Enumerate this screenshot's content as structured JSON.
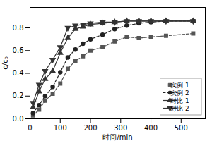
{
  "chart_data": {
    "type": "line",
    "xlabel": "时间/min",
    "ylabel": "c/c₀",
    "x": [
      10,
      30,
      50,
      75,
      100,
      125,
      150,
      175,
      200,
      240,
      280,
      320,
      360,
      400,
      450,
      540
    ],
    "series": [
      {
        "name": "实例 1",
        "color": "#555555",
        "marker": "square",
        "line_style": "dashed",
        "values": [
          0.03,
          0.08,
          0.16,
          0.22,
          0.31,
          0.44,
          0.51,
          0.55,
          0.6,
          0.63,
          0.68,
          0.72,
          0.71,
          0.72,
          0.73,
          0.75
        ]
      },
      {
        "name": "实例 2",
        "color": "#222222",
        "marker": "circle",
        "line_style": "dashed",
        "values": [
          0.05,
          0.12,
          0.2,
          0.28,
          0.41,
          0.54,
          0.61,
          0.66,
          0.7,
          0.74,
          0.79,
          0.82,
          0.84,
          0.85,
          0.86,
          0.86
        ]
      },
      {
        "name": "对比 1",
        "color": "#333333",
        "marker": "triangle-up",
        "line_style": "solid",
        "values": [
          0.1,
          0.24,
          0.35,
          0.42,
          0.58,
          0.71,
          0.79,
          0.81,
          0.83,
          0.84,
          0.85,
          0.86,
          0.86,
          0.86,
          0.86,
          0.86
        ]
      },
      {
        "name": "对比 2",
        "color": "#333333",
        "marker": "triangle-down",
        "line_style": "solid",
        "values": [
          0.14,
          0.3,
          0.42,
          0.52,
          0.63,
          0.8,
          0.82,
          0.83,
          0.84,
          0.85,
          0.85,
          0.86,
          0.86,
          0.86,
          0.86,
          0.86
        ]
      }
    ],
    "xlim": [
      0,
      580
    ],
    "ylim": [
      0.0,
      0.98
    ],
    "xticks": [
      0,
      100,
      200,
      300,
      400,
      500
    ],
    "yticks": [
      {
        "value": 0.0,
        "label": "0.0"
      },
      0.2,
      0.4,
      0.6,
      0.8
    ],
    "grid": false,
    "legend": "lower right"
  }
}
